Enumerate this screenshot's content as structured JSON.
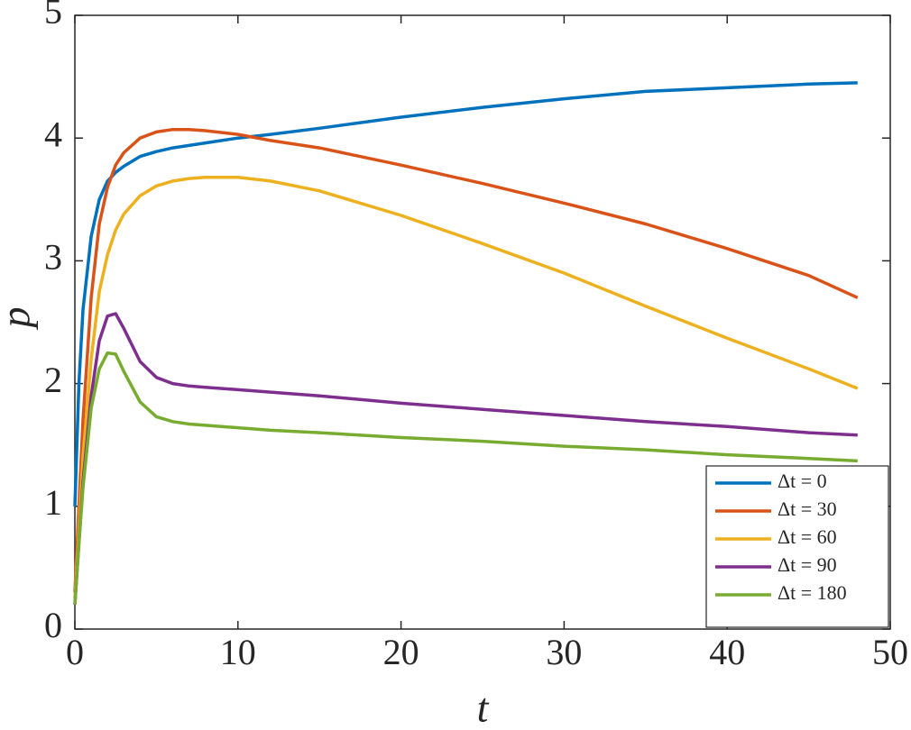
{
  "chart_data": {
    "type": "line",
    "xlabel": "t",
    "ylabel": "p",
    "x": [
      0,
      0.25,
      0.5,
      1,
      1.5,
      2,
      2.5,
      3,
      4,
      5,
      6,
      7,
      8,
      10,
      12,
      15,
      20,
      25,
      30,
      35,
      40,
      45,
      48
    ],
    "series": [
      {
        "name": "Δt = 0",
        "color": "#0072BD",
        "values": [
          1.0,
          2.0,
          2.6,
          3.2,
          3.5,
          3.65,
          3.72,
          3.77,
          3.85,
          3.89,
          3.92,
          3.94,
          3.96,
          4.0,
          4.03,
          4.08,
          4.17,
          4.25,
          4.32,
          4.38,
          4.41,
          4.44,
          4.45
        ]
      },
      {
        "name": "Δt = 30",
        "color": "#D95319",
        "values": [
          0.3,
          1.0,
          1.7,
          2.7,
          3.3,
          3.6,
          3.78,
          3.88,
          4.0,
          4.05,
          4.07,
          4.07,
          4.06,
          4.03,
          3.98,
          3.92,
          3.78,
          3.63,
          3.47,
          3.3,
          3.1,
          2.88,
          2.7
        ]
      },
      {
        "name": "Δt = 60",
        "color": "#EDB120",
        "values": [
          0.25,
          0.8,
          1.4,
          2.2,
          2.75,
          3.05,
          3.25,
          3.38,
          3.53,
          3.61,
          3.65,
          3.67,
          3.68,
          3.68,
          3.65,
          3.57,
          3.37,
          3.14,
          2.9,
          2.63,
          2.37,
          2.12,
          1.96
        ]
      },
      {
        "name": "Δt = 90",
        "color": "#7E2F8E",
        "values": [
          0.2,
          0.7,
          1.2,
          1.9,
          2.35,
          2.55,
          2.57,
          2.45,
          2.18,
          2.05,
          2.0,
          1.98,
          1.97,
          1.95,
          1.93,
          1.9,
          1.84,
          1.79,
          1.74,
          1.69,
          1.65,
          1.6,
          1.58
        ]
      },
      {
        "name": "Δt = 180",
        "color": "#77AC30",
        "values": [
          0.2,
          0.7,
          1.15,
          1.8,
          2.12,
          2.25,
          2.24,
          2.1,
          1.85,
          1.73,
          1.69,
          1.67,
          1.66,
          1.64,
          1.62,
          1.6,
          1.56,
          1.53,
          1.49,
          1.46,
          1.42,
          1.39,
          1.37
        ]
      }
    ],
    "xlim": [
      0,
      50
    ],
    "xticks": [
      0,
      10,
      20,
      30,
      40,
      50
    ],
    "ylim": [
      0,
      5
    ],
    "yticks": [
      0,
      1,
      2,
      3,
      4,
      5
    ],
    "legend_position": "lower right"
  }
}
